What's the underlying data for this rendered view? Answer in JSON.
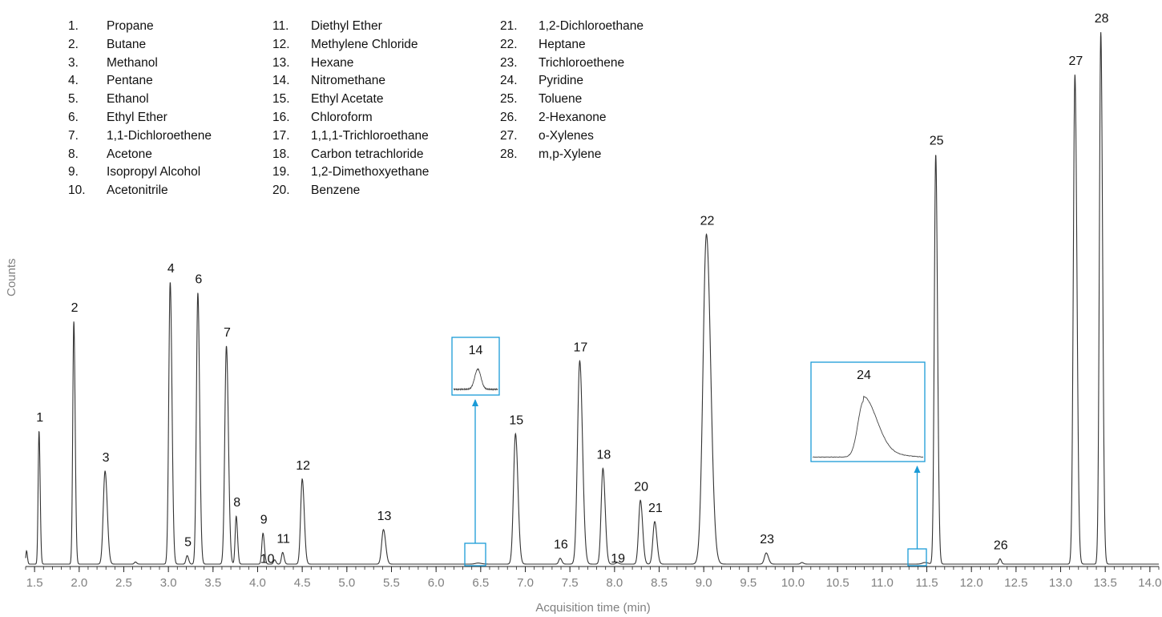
{
  "chart_data": {
    "type": "line",
    "xlabel": "Acquisition time (min)",
    "ylabel": "Counts",
    "xlim": [
      1.4,
      14.1
    ],
    "xticks": [
      "1.5",
      "2.0",
      "2.5",
      "3.0",
      "3.5",
      "4.0",
      "4.5",
      "5.0",
      "5.5",
      "6.0",
      "6.5",
      "7.0",
      "7.5",
      "8.0",
      "8.5",
      "9.0",
      "9.5",
      "10.0",
      "10.5",
      "11.0",
      "11.5",
      "12.0",
      "12.5",
      "13.0",
      "13.5",
      "14.0"
    ],
    "y_axis": "unscaled (no tick labels)",
    "ylim": [
      0,
      100
    ],
    "line_color": "#333333",
    "peaks": [
      {
        "label": "1",
        "x": 1.55,
        "height": 25.0,
        "width": 0.01
      },
      {
        "label": "2",
        "x": 1.94,
        "height": 45.6,
        "width": 0.012
      },
      {
        "label": "3",
        "x": 2.29,
        "height": 17.5,
        "width": 0.02
      },
      {
        "label": "4",
        "x": 3.02,
        "height": 53.0,
        "width": 0.016
      },
      {
        "label": "5",
        "x": 3.21,
        "height": 1.6,
        "width": 0.013
      },
      {
        "label": "6",
        "x": 3.33,
        "height": 51.0,
        "width": 0.016
      },
      {
        "label": "7",
        "x": 3.65,
        "height": 41.0,
        "width": 0.018
      },
      {
        "label": "8",
        "x": 3.76,
        "height": 9.0,
        "width": 0.012
      },
      {
        "label": "9",
        "x": 4.06,
        "height": 5.8,
        "width": 0.013
      },
      {
        "label": "10",
        "x": 4.19,
        "height": 0.8,
        "width": 0.012
      },
      {
        "label": "11",
        "x": 4.28,
        "height": 2.2,
        "width": 0.013
      },
      {
        "label": "12",
        "x": 4.5,
        "height": 16.0,
        "width": 0.018
      },
      {
        "label": "13",
        "x": 5.41,
        "height": 6.5,
        "width": 0.02
      },
      {
        "label": "14",
        "x": 6.47,
        "height": 0.2,
        "width": 0.03
      },
      {
        "label": "15",
        "x": 6.89,
        "height": 24.5,
        "width": 0.022
      },
      {
        "label": "16",
        "x": 7.39,
        "height": 1.1,
        "width": 0.015
      },
      {
        "label": "17",
        "x": 7.61,
        "height": 38.2,
        "width": 0.025
      },
      {
        "label": "18",
        "x": 7.87,
        "height": 18.0,
        "width": 0.02
      },
      {
        "label": "19",
        "x": 8.03,
        "height": 0.3,
        "width": 0.015
      },
      {
        "label": "20",
        "x": 8.29,
        "height": 12.0,
        "width": 0.02
      },
      {
        "label": "21",
        "x": 8.45,
        "height": 8.0,
        "width": 0.02
      },
      {
        "label": "22",
        "x": 9.03,
        "height": 62.0,
        "width": 0.038
      },
      {
        "label": "23",
        "x": 9.7,
        "height": 2.1,
        "width": 0.02
      },
      {
        "label": "24",
        "x": 11.48,
        "height": 0.3,
        "width": 0.03
      },
      {
        "label": "25",
        "x": 11.6,
        "height": 77.0,
        "width": 0.016
      },
      {
        "label": "26",
        "x": 12.32,
        "height": 1.0,
        "width": 0.012
      },
      {
        "label": "27",
        "x": 13.16,
        "height": 92.0,
        "width": 0.018
      },
      {
        "label": "28",
        "x": 13.45,
        "height": 100.0,
        "width": 0.016
      }
    ],
    "minor_bumps": [
      {
        "x": 1.41,
        "height": 2.5,
        "width": 0.008
      },
      {
        "x": 2.63,
        "height": 0.4,
        "width": 0.012
      },
      {
        "x": 10.1,
        "height": 0.3,
        "width": 0.015
      }
    ],
    "insets": [
      {
        "label": "14",
        "peak_x": 6.47,
        "color": "#1a9bd7"
      },
      {
        "label": "24",
        "peak_x": 11.48,
        "color": "#1a9bd7"
      }
    ],
    "legend": [
      {
        "num": "1.",
        "name": "Propane"
      },
      {
        "num": "2.",
        "name": "Butane"
      },
      {
        "num": "3.",
        "name": "Methanol"
      },
      {
        "num": "4.",
        "name": "Pentane"
      },
      {
        "num": "5.",
        "name": "Ethanol"
      },
      {
        "num": "6.",
        "name": "Ethyl Ether"
      },
      {
        "num": "7.",
        "name": "1,1-Dichloroethene"
      },
      {
        "num": "8.",
        "name": "Acetone"
      },
      {
        "num": "9.",
        "name": "Isopropyl Alcohol"
      },
      {
        "num": "10.",
        "name": "Acetonitrile"
      },
      {
        "num": "11.",
        "name": "Diethyl Ether"
      },
      {
        "num": "12.",
        "name": "Methylene Chloride"
      },
      {
        "num": "13.",
        "name": "Hexane"
      },
      {
        "num": "14.",
        "name": "Nitromethane"
      },
      {
        "num": "15.",
        "name": "Ethyl Acetate"
      },
      {
        "num": "16.",
        "name": "Chloroform"
      },
      {
        "num": "17.",
        "name": "1,1,1-Trichloroethane"
      },
      {
        "num": "18.",
        "name": "Carbon tetrachloride"
      },
      {
        "num": "19.",
        "name": "1,2-Dimethoxyethane"
      },
      {
        "num": "20.",
        "name": "Benzene"
      },
      {
        "num": "21.",
        "name": "1,2-Dichloroethane"
      },
      {
        "num": "22.",
        "name": "Heptane"
      },
      {
        "num": "23.",
        "name": "Trichloroethene"
      },
      {
        "num": "24.",
        "name": "Pyridine"
      },
      {
        "num": "25.",
        "name": "Toluene"
      },
      {
        "num": "26.",
        "name": "2-Hexanone"
      },
      {
        "num": "27.",
        "name": "o-Xylenes"
      },
      {
        "num": "28.",
        "name": "m,p-Xylene"
      }
    ]
  }
}
